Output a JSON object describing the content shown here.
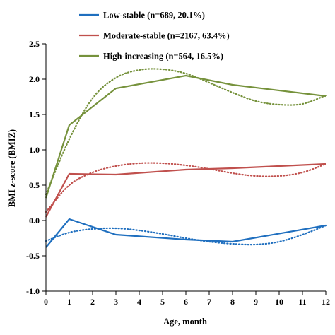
{
  "chart_data": {
    "type": "line",
    "xlabel": "Age, month",
    "ylabel": "BMI z-score (BMIZ)",
    "xlim": [
      0,
      12
    ],
    "ylim": [
      -1.0,
      2.5
    ],
    "x_ticks": [
      0,
      1,
      2,
      3,
      4,
      5,
      6,
      7,
      8,
      9,
      10,
      11,
      12
    ],
    "x_tick_labels": [
      "0",
      "1",
      "2",
      "3",
      "4",
      "5",
      "6",
      "7",
      "8",
      "9",
      "10",
      "11",
      "12"
    ],
    "y_ticks": [
      -1.0,
      -0.5,
      0.0,
      0.5,
      1.0,
      1.5,
      2.0,
      2.5
    ],
    "y_tick_labels": [
      "-1.0",
      "-0.5",
      "0.0",
      "0.5",
      "1.0",
      "1.5",
      "2.0",
      "2.5"
    ],
    "grid": false,
    "legend_position": "top-center",
    "series": [
      {
        "name": "Low-stable (n=689, 20.1%)",
        "color": "#1f6fbf",
        "observed": {
          "x": [
            0,
            1,
            3,
            6,
            8,
            12
          ],
          "y": [
            -0.38,
            0.02,
            -0.2,
            -0.27,
            -0.3,
            -0.07
          ]
        },
        "fitted": {
          "x": [
            0,
            1,
            2,
            3,
            4,
            5,
            6,
            7,
            8,
            9,
            10,
            11,
            12
          ],
          "y": [
            -0.29,
            -0.17,
            -0.12,
            -0.11,
            -0.14,
            -0.19,
            -0.25,
            -0.3,
            -0.33,
            -0.34,
            -0.3,
            -0.2,
            -0.07
          ]
        }
      },
      {
        "name": "Moderate-stable (n=2167, 63.4%)",
        "color": "#c0504d",
        "observed": {
          "x": [
            0,
            1,
            3,
            6,
            8,
            12
          ],
          "y": [
            0.05,
            0.66,
            0.65,
            0.72,
            0.74,
            0.8
          ]
        },
        "fitted": {
          "x": [
            0,
            1,
            2,
            3,
            4,
            5,
            6,
            7,
            8,
            9,
            10,
            11,
            12
          ],
          "y": [
            0.12,
            0.5,
            0.68,
            0.77,
            0.81,
            0.81,
            0.78,
            0.73,
            0.67,
            0.63,
            0.63,
            0.68,
            0.8
          ]
        }
      },
      {
        "name": "High-increasing (n=564, 16.5%)",
        "color": "#76923c",
        "observed": {
          "x": [
            0,
            1,
            3,
            6,
            8,
            12
          ],
          "y": [
            0.32,
            1.35,
            1.87,
            2.05,
            1.92,
            1.76
          ]
        },
        "fitted": {
          "x": [
            0,
            1,
            2,
            3,
            4,
            5,
            6,
            7,
            8,
            9,
            10,
            11,
            12
          ],
          "y": [
            0.37,
            1.15,
            1.73,
            2.02,
            2.13,
            2.14,
            2.08,
            1.95,
            1.81,
            1.69,
            1.64,
            1.65,
            1.77
          ]
        }
      }
    ]
  }
}
